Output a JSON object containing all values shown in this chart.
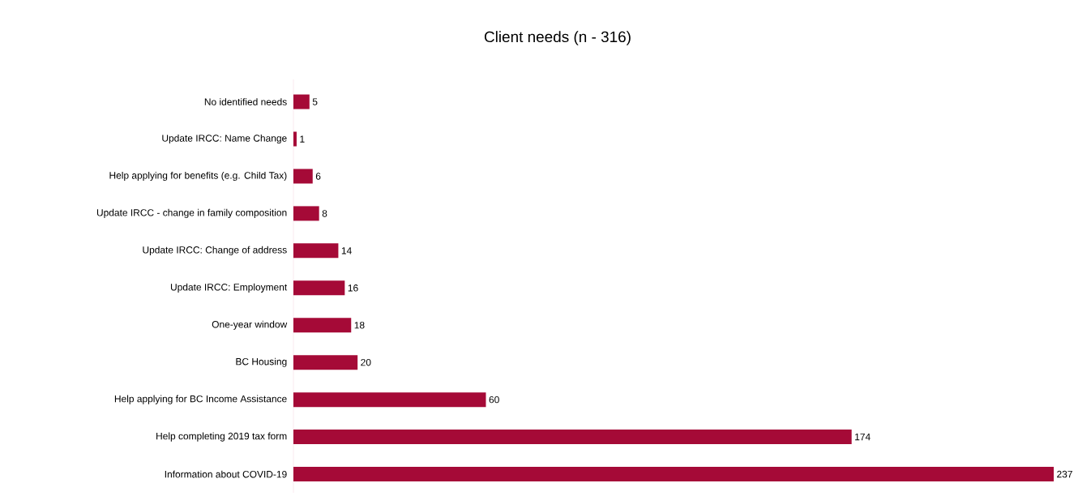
{
  "chart_data": {
    "type": "bar",
    "orientation": "horizontal",
    "title": "Client needs (n - 316)",
    "categories": [
      "No identified needs",
      "Update IRCC: Name Change",
      "Help applying for benefits (e.g. Child Tax)",
      "Update IRCC - change in family composition",
      "Update IRCC: Change of address",
      "Update IRCC: Employment",
      "One-year window",
      "BC Housing",
      "Help applying for BC Income Assistance",
      "Help completing 2019 tax form",
      "Information about COVID-19"
    ],
    "values": [
      5,
      1,
      6,
      8,
      14,
      16,
      18,
      20,
      60,
      174,
      237
    ],
    "color": "#a50a37",
    "data_labels": true
  }
}
